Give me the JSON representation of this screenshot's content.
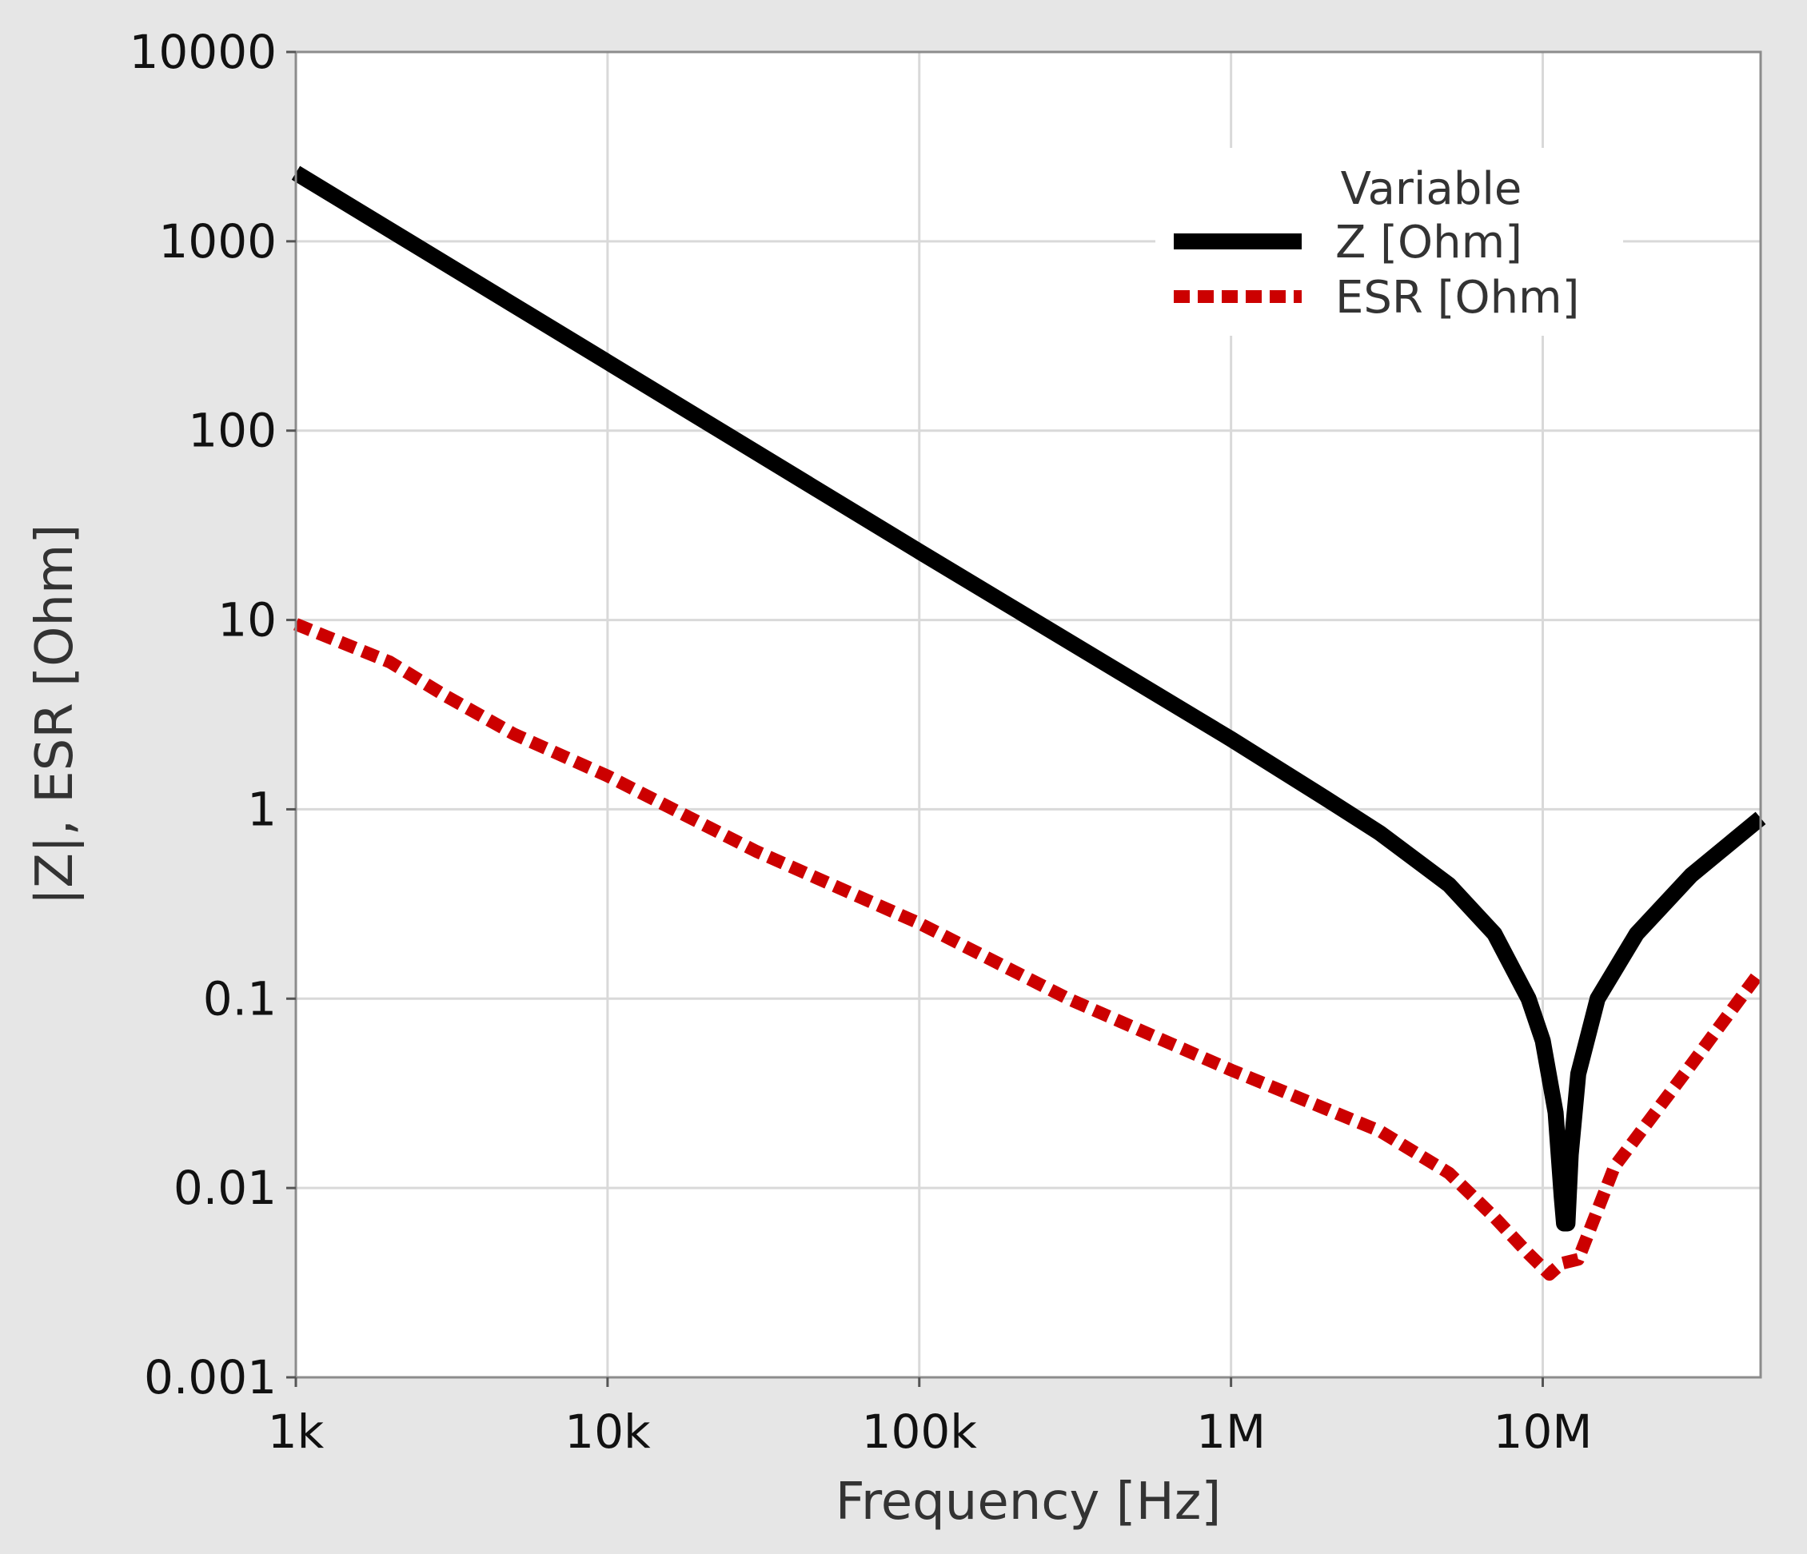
{
  "chart_data": {
    "type": "line",
    "title": "",
    "xlabel": "Frequency [Hz]",
    "ylabel": "|Z|, ESR [Ohm]",
    "xscale": "log",
    "yscale": "log",
    "xlim": [
      1000,
      50000000
    ],
    "ylim": [
      0.001,
      10000
    ],
    "grid": true,
    "x_ticks": [
      {
        "value": 1000,
        "label": "1k"
      },
      {
        "value": 10000,
        "label": "10k"
      },
      {
        "value": 100000,
        "label": "100k"
      },
      {
        "value": 1000000,
        "label": "1M"
      },
      {
        "value": 10000000,
        "label": "10M"
      }
    ],
    "y_ticks": [
      {
        "value": 10000,
        "label": "10000"
      },
      {
        "value": 1000,
        "label": "1000"
      },
      {
        "value": 100,
        "label": "100"
      },
      {
        "value": 10,
        "label": "10"
      },
      {
        "value": 1,
        "label": "1"
      },
      {
        "value": 0.1,
        "label": "0.1"
      },
      {
        "value": 0.01,
        "label": "0.01"
      },
      {
        "value": 0.001,
        "label": "0.001"
      }
    ],
    "legend": {
      "title": "Variable",
      "placement": "top-right",
      "entries": [
        "Z [Ohm]",
        "ESR [Ohm]"
      ]
    },
    "series": [
      {
        "name": "Z [Ohm]",
        "color": "#000000",
        "style": "solid",
        "points": [
          [
            1000,
            2300
          ],
          [
            10000,
            230
          ],
          [
            100000,
            23
          ],
          [
            1000000,
            2.35
          ],
          [
            2000000,
            1.15
          ],
          [
            3000000,
            0.75
          ],
          [
            5000000,
            0.4
          ],
          [
            7000000,
            0.22
          ],
          [
            9000000,
            0.1
          ],
          [
            10000000,
            0.06
          ],
          [
            11000000,
            0.025
          ],
          [
            11500000,
            0.009
          ],
          [
            11700000,
            0.0065
          ],
          [
            12000000,
            0.0065
          ],
          [
            12300000,
            0.015
          ],
          [
            13000000,
            0.04
          ],
          [
            15000000,
            0.1
          ],
          [
            20000000,
            0.22
          ],
          [
            30000000,
            0.45
          ],
          [
            50000000,
            0.9
          ]
        ]
      },
      {
        "name": "ESR [Ohm]",
        "color": "#cc0000",
        "style": "dashed",
        "points": [
          [
            1000,
            9.5
          ],
          [
            2000,
            6
          ],
          [
            3000,
            4
          ],
          [
            5000,
            2.5
          ],
          [
            10000,
            1.5
          ],
          [
            30000,
            0.6
          ],
          [
            100000,
            0.25
          ],
          [
            300000,
            0.1
          ],
          [
            1000000,
            0.042
          ],
          [
            3000000,
            0.02
          ],
          [
            5000000,
            0.012
          ],
          [
            7000000,
            0.007
          ],
          [
            9000000,
            0.0045
          ],
          [
            10500000,
            0.0035
          ],
          [
            11500000,
            0.004
          ],
          [
            13000000,
            0.0042
          ],
          [
            17000000,
            0.013
          ],
          [
            30000000,
            0.045
          ],
          [
            50000000,
            0.14
          ]
        ]
      }
    ]
  }
}
